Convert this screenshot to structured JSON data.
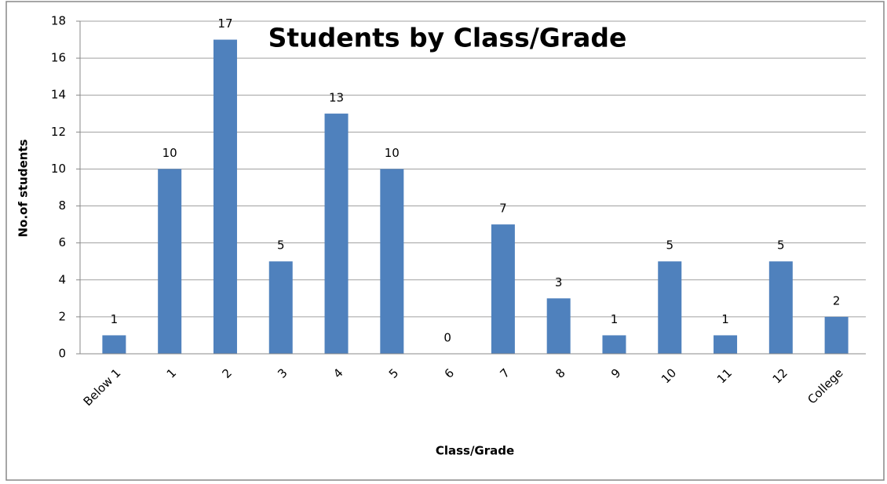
{
  "chart_data": {
    "type": "bar",
    "title": "Students by Class/Grade",
    "x_label": "Class/Grade",
    "y_label": "No.of students",
    "categories": [
      "Below 1",
      "1",
      "2",
      "3",
      "4",
      "5",
      "6",
      "7",
      "8",
      "9",
      "10",
      "11",
      "12",
      "College"
    ],
    "values": [
      1,
      10,
      17,
      5,
      13,
      10,
      0,
      7,
      3,
      1,
      5,
      1,
      5,
      2
    ],
    "color": "#4f81bd",
    "ylim": [
      0,
      18
    ],
    "yticks": [
      0,
      2,
      4,
      6,
      8,
      10,
      12,
      14,
      16,
      18
    ],
    "grid": true
  }
}
